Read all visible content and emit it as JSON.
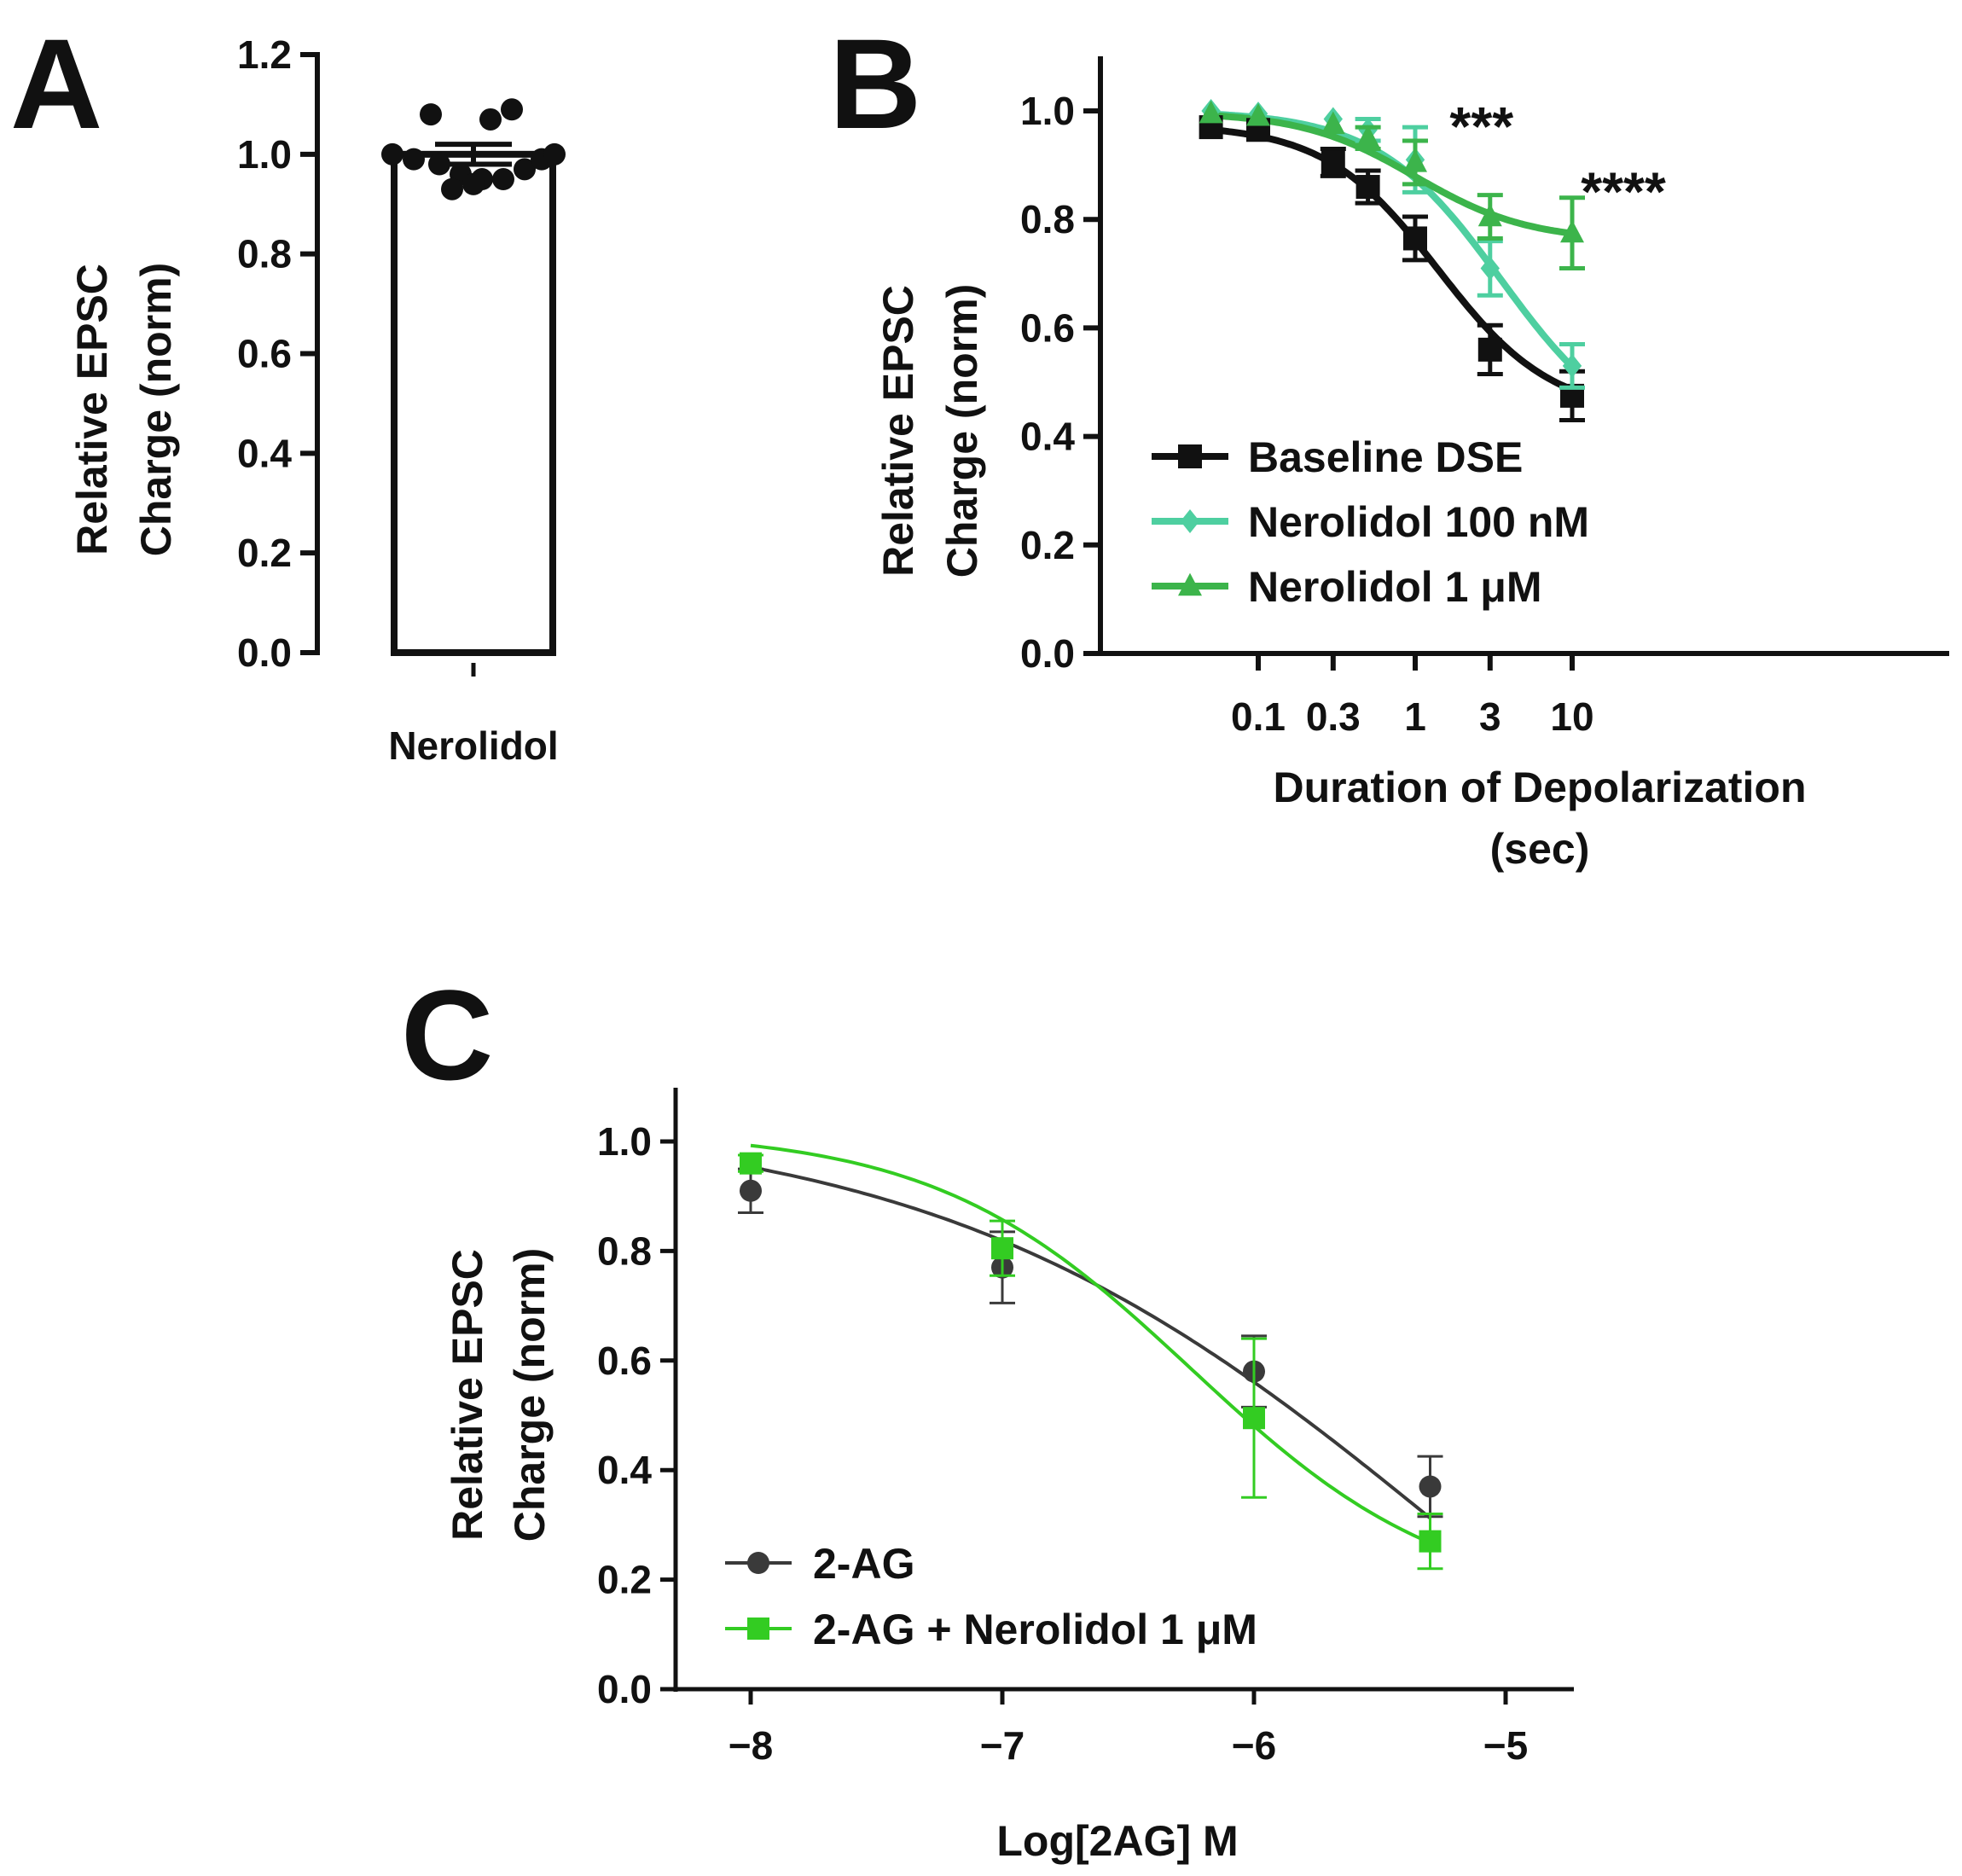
{
  "chart_data": [
    {
      "panel": "A",
      "type": "bar",
      "ylabel": [
        "Relative EPSC",
        "Charge (norm)"
      ],
      "ylim": [
        0,
        1.2
      ],
      "y_ticks": [
        "0.0",
        "0.2",
        "0.4",
        "0.6",
        "0.8",
        "1.0",
        "1.2"
      ],
      "y_tick_values": [
        0,
        0.2,
        0.4,
        0.6,
        0.8,
        1.0,
        1.2
      ],
      "categories": [
        "Nerolidol"
      ],
      "values": [
        1.0
      ],
      "error": [
        0.02
      ],
      "points": [
        1.08,
        1.07,
        1.09,
        1.0,
        0.99,
        0.98,
        0.96,
        0.95,
        0.94,
        0.93,
        0.95,
        0.97,
        0.99,
        1.0
      ]
    },
    {
      "panel": "B",
      "type": "line",
      "xscale": "log",
      "xlabel": [
        "Duration of Depolarization",
        "(sec)"
      ],
      "ylabel": [
        "Relative EPSC",
        "Charge (norm)"
      ],
      "ylim": [
        0,
        1.1
      ],
      "x_ticks": [
        "0.1",
        "0.3",
        "1",
        "3",
        "10"
      ],
      "x_tick_values": [
        0.1,
        0.3,
        1,
        3,
        10
      ],
      "y_ticks": [
        "0.0",
        "0.2",
        "0.4",
        "0.6",
        "0.8",
        "1.0"
      ],
      "y_tick_values": [
        0,
        0.2,
        0.4,
        0.6,
        0.8,
        1.0
      ],
      "x": [
        0.05,
        0.1,
        0.3,
        0.5,
        1,
        3,
        10
      ],
      "series": [
        {
          "name": "Baseline DSE",
          "marker": "square",
          "color": "#111111",
          "values": [
            0.97,
            0.965,
            0.905,
            0.86,
            0.765,
            0.56,
            0.475
          ],
          "error": [
            0.01,
            0.01,
            0.025,
            0.03,
            0.04,
            0.045,
            0.045
          ]
        },
        {
          "name": "Nerolidol 100 nM",
          "marker": "diamond",
          "color": "#4ecfa0",
          "values": [
            1.0,
            0.995,
            0.985,
            0.965,
            0.91,
            0.71,
            0.53
          ],
          "error": [
            0.01,
            0.01,
            0.01,
            0.02,
            0.06,
            0.05,
            0.04
          ]
        },
        {
          "name": "Nerolidol 1 μM",
          "marker": "triangle",
          "color": "#3cb44b",
          "values": [
            0.995,
            0.99,
            0.975,
            0.95,
            0.905,
            0.805,
            0.775
          ],
          "error": [
            0.01,
            0.01,
            0.01,
            0.02,
            0.04,
            0.04,
            0.065
          ]
        }
      ],
      "fits": [
        {
          "name": "Baseline DSE",
          "bottom": 0.44,
          "top": 0.975,
          "ec50": 1.4,
          "hill": 1.2
        },
        {
          "name": "Nerolidol 100 nM",
          "bottom": 0.38,
          "top": 1.0,
          "ec50": 3.5,
          "hill": 1.1
        },
        {
          "name": "Nerolidol 1 μM",
          "bottom": 0.76,
          "top": 0.998,
          "ec50": 1.0,
          "hill": 1.2
        }
      ],
      "annotations": [
        {
          "text": "***",
          "x": 3,
          "y": 1.0
        },
        {
          "text": "****",
          "x": 10,
          "y": 0.88
        }
      ],
      "legend": "bottom-left"
    },
    {
      "panel": "C",
      "type": "line",
      "xlabel": "Log[2AG] M",
      "ylabel": [
        "Relative EPSC",
        "Charge (norm)"
      ],
      "xlim": [
        -8.3,
        -4.7
      ],
      "ylim": [
        0,
        1.1
      ],
      "x_ticks": [
        "−8",
        "−7",
        "−6",
        "−5"
      ],
      "x_tick_values": [
        -8,
        -7,
        -6,
        -5
      ],
      "y_ticks": [
        "0.0",
        "0.2",
        "0.4",
        "0.6",
        "0.8",
        "1.0"
      ],
      "y_tick_values": [
        0,
        0.2,
        0.4,
        0.6,
        0.8,
        1.0
      ],
      "x": [
        -8,
        -7,
        -6,
        -5.3
      ],
      "series": [
        {
          "name": "2-AG",
          "marker": "circle",
          "color": "#3a3a3a",
          "values": [
            0.91,
            0.77,
            0.58,
            0.37
          ],
          "error": [
            0.04,
            0.065,
            0.065,
            0.055
          ]
        },
        {
          "name": "2-AG + Nerolidol 1 μM",
          "marker": "square",
          "color": "#33cc22",
          "values": [
            0.96,
            0.805,
            0.495,
            0.27
          ],
          "error": [
            0.015,
            0.05,
            0.145,
            0.05
          ]
        }
      ],
      "fits": [
        {
          "name": "2-AG",
          "bottom": -0.5,
          "top": 1.05,
          "logec50": -5.2,
          "hill": 0.42
        },
        {
          "name": "2-AG + Nerolidol 1 μM",
          "bottom": 0.15,
          "top": 1.02,
          "logec50": -6.25,
          "hill": 0.85
        }
      ],
      "legend": "bottom-left"
    }
  ]
}
